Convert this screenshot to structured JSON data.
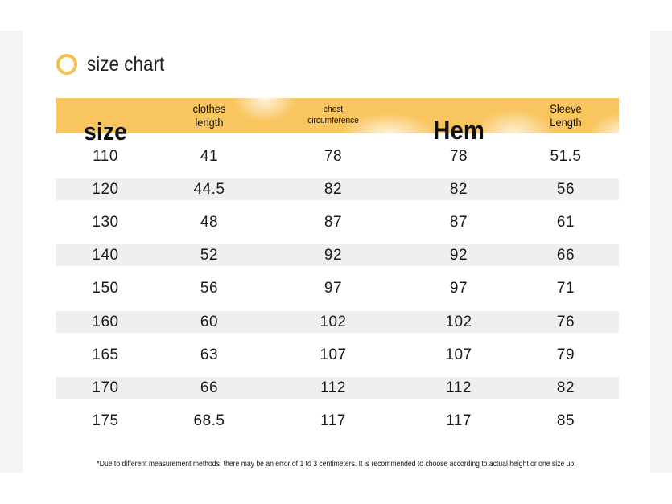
{
  "title": "size chart",
  "table": {
    "header": [
      [
        "size"
      ],
      [
        "clothes",
        "length"
      ],
      [
        "chest",
        "circumference"
      ],
      [
        "Hem"
      ],
      [
        "Sleeve",
        "Length"
      ]
    ],
    "rows": [
      [
        "110",
        "41",
        "78",
        "78",
        "51.5"
      ],
      [
        "120",
        "44.5",
        "82",
        "82",
        "56"
      ],
      [
        "130",
        "48",
        "87",
        "87",
        "61"
      ],
      [
        "140",
        "52",
        "92",
        "92",
        "66"
      ],
      [
        "150",
        "56",
        "97",
        "97",
        "71"
      ],
      [
        "160",
        "60",
        "102",
        "102",
        "76"
      ],
      [
        "165",
        "63",
        "107",
        "107",
        "79"
      ],
      [
        "170",
        "66",
        "112",
        "112",
        "82"
      ],
      [
        "175",
        "68.5",
        "117",
        "117",
        "85"
      ]
    ]
  },
  "footnote": "*Due to different measurement methods, there may be an error of 1 to 3 centimeters. It is recommended to choose according to actual height or one size up."
}
